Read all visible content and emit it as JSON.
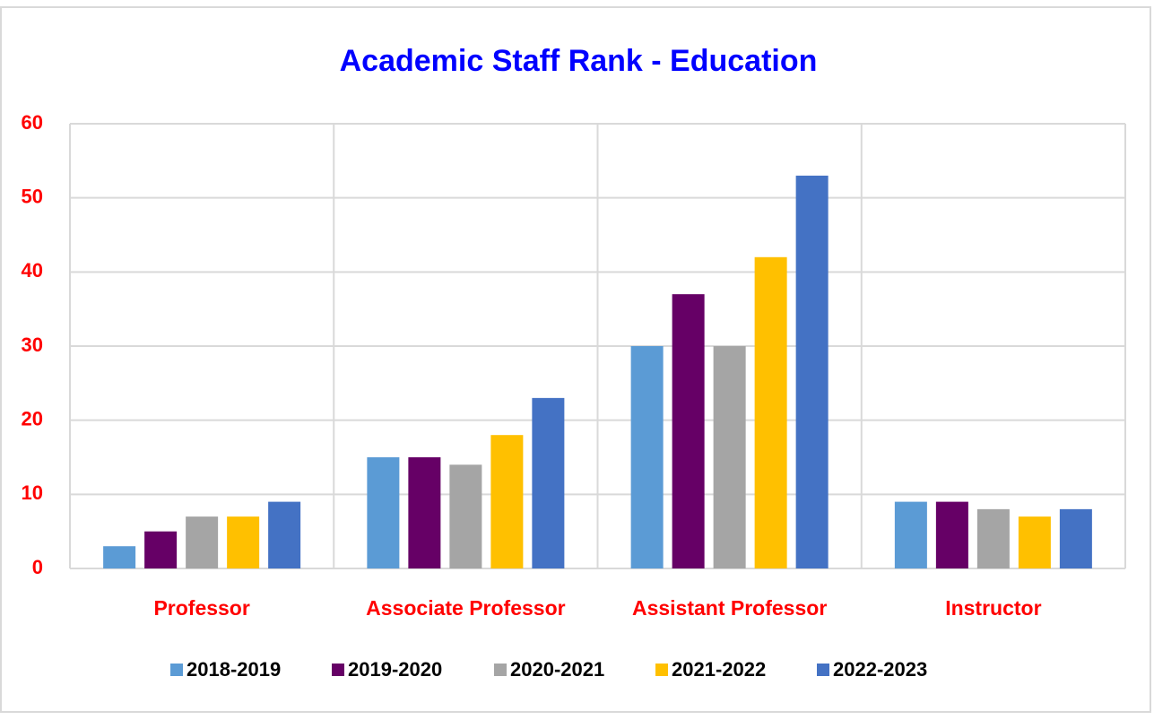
{
  "chart_data": {
    "type": "bar",
    "title": "Academic Staff Rank - Education",
    "categories": [
      "Professor",
      "Associate Professor",
      "Assistant Professor",
      "Instructor"
    ],
    "series": [
      {
        "name": "2018-2019",
        "color": "#5b9bd5",
        "values": [
          3,
          15,
          30,
          9
        ]
      },
      {
        "name": "2019-2020",
        "color": "#660066",
        "values": [
          5,
          15,
          37,
          9
        ]
      },
      {
        "name": "2020-2021",
        "color": "#a5a5a5",
        "values": [
          7,
          14,
          30,
          8
        ]
      },
      {
        "name": "2021-2022",
        "color": "#ffc000",
        "values": [
          7,
          18,
          42,
          7
        ]
      },
      {
        "name": "2022-2023",
        "color": "#4472c4",
        "values": [
          9,
          23,
          53,
          8
        ]
      }
    ],
    "ylim": [
      0,
      60
    ],
    "yticks": [
      0,
      10,
      20,
      30,
      40,
      50,
      60
    ],
    "grid": true,
    "legend": "bottom"
  }
}
